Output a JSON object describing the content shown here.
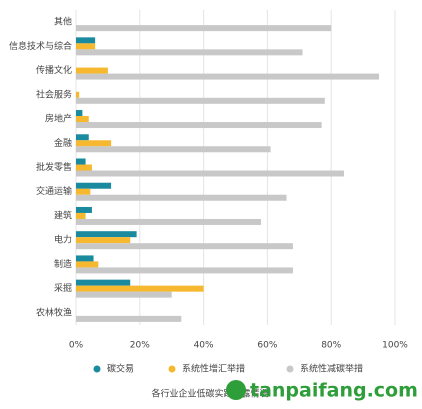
{
  "chart_data": {
    "type": "hbar",
    "title": "各行业企业低碳实践披露情况",
    "categories": [
      "其他",
      "信息技术与综合",
      "传播文化",
      "社会服务",
      "房地产",
      "金融",
      "批发零售",
      "交通运输",
      "建筑",
      "电力",
      "制造",
      "采掘",
      "农林牧渔"
    ],
    "series": [
      {
        "name": "碳交易",
        "color": "#1a8a9e",
        "values": [
          0,
          6,
          0,
          0,
          2,
          4,
          3,
          11,
          5,
          19,
          5.5,
          17,
          0
        ]
      },
      {
        "name": "系统性增汇举措",
        "color": "#f5b82e",
        "values": [
          0,
          6,
          10,
          1,
          4,
          11,
          5,
          4.5,
          3,
          17,
          7,
          40,
          0
        ]
      },
      {
        "name": "系统性减碳举措",
        "color": "#c8c8c8",
        "values": [
          80,
          71,
          95,
          78,
          77,
          61,
          84,
          66,
          58,
          68,
          68,
          30,
          33
        ]
      }
    ],
    "xlim": [
      0,
      100
    ],
    "xticks": [
      {
        "value": 0,
        "label": "0%"
      },
      {
        "value": 20,
        "label": "20%"
      },
      {
        "value": 40,
        "label": "40%"
      },
      {
        "value": 60,
        "label": "60%"
      },
      {
        "value": 80,
        "label": "80%"
      },
      {
        "value": 100,
        "label": "100%"
      }
    ],
    "grid": true,
    "watermark": "tanpaifang.com"
  }
}
